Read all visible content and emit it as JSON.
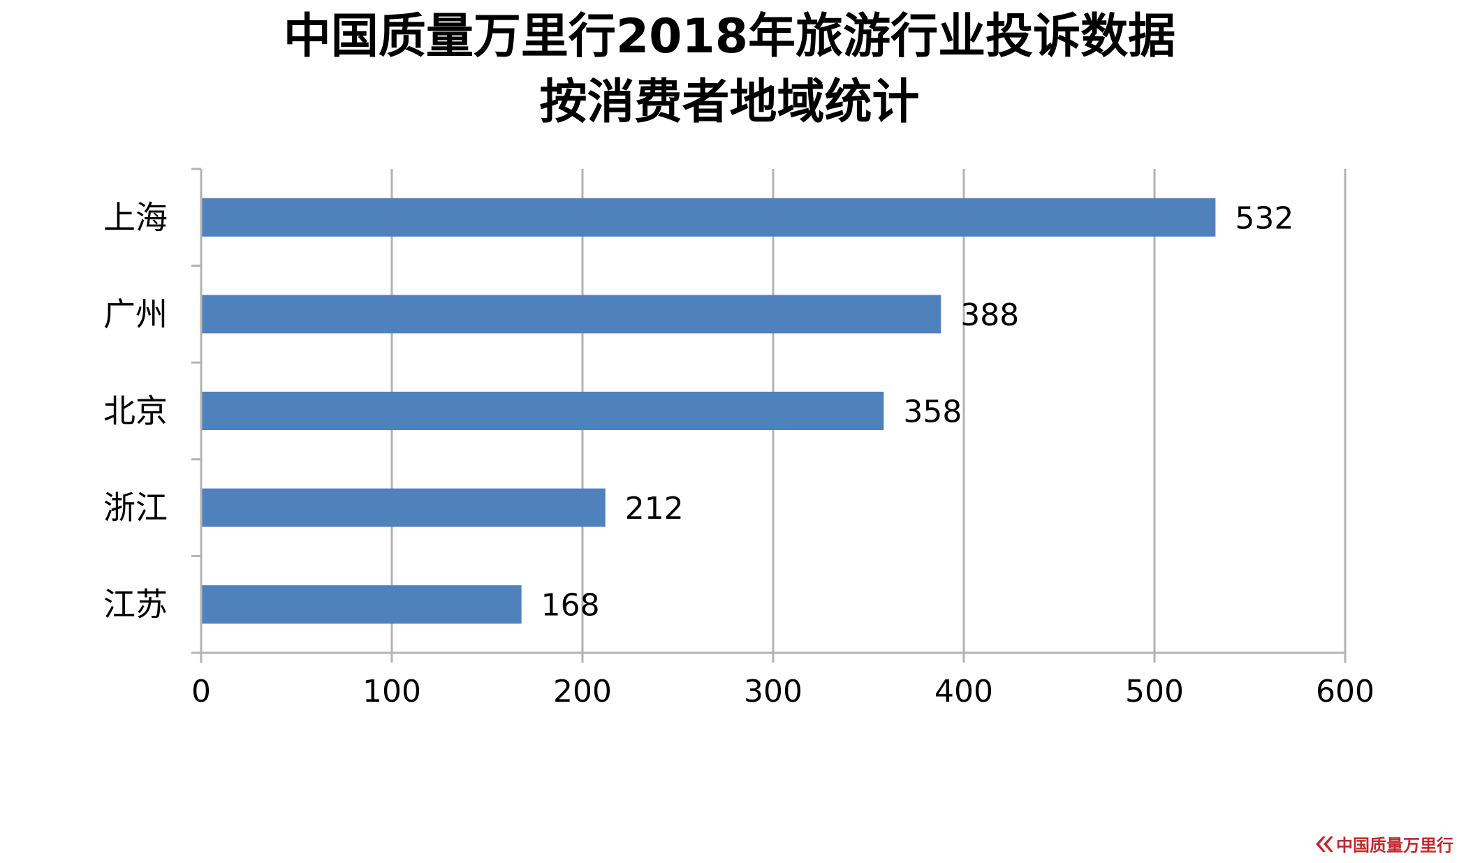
{
  "chart_data": {
    "type": "bar",
    "orientation": "horizontal",
    "title_lines": [
      "中国质量万里行2018年旅游行业投诉数据",
      "按消费者地域统计"
    ],
    "categories": [
      "上海",
      "广州",
      "北京",
      "浙江",
      "江苏"
    ],
    "values": [
      532,
      388,
      358,
      212,
      168
    ],
    "xlim": [
      0,
      600
    ],
    "xticks": [
      "0",
      "100",
      "200",
      "300",
      "400",
      "500",
      "600"
    ],
    "xtick_values": [
      0,
      100,
      200,
      300,
      400,
      500,
      600
    ],
    "grid": true,
    "legend": "none",
    "bar_color": "#4f81bd",
    "grid_color": "#b3b3b3"
  },
  "watermark": {
    "text": "中国质量万里行",
    "color": "#c0282d"
  }
}
